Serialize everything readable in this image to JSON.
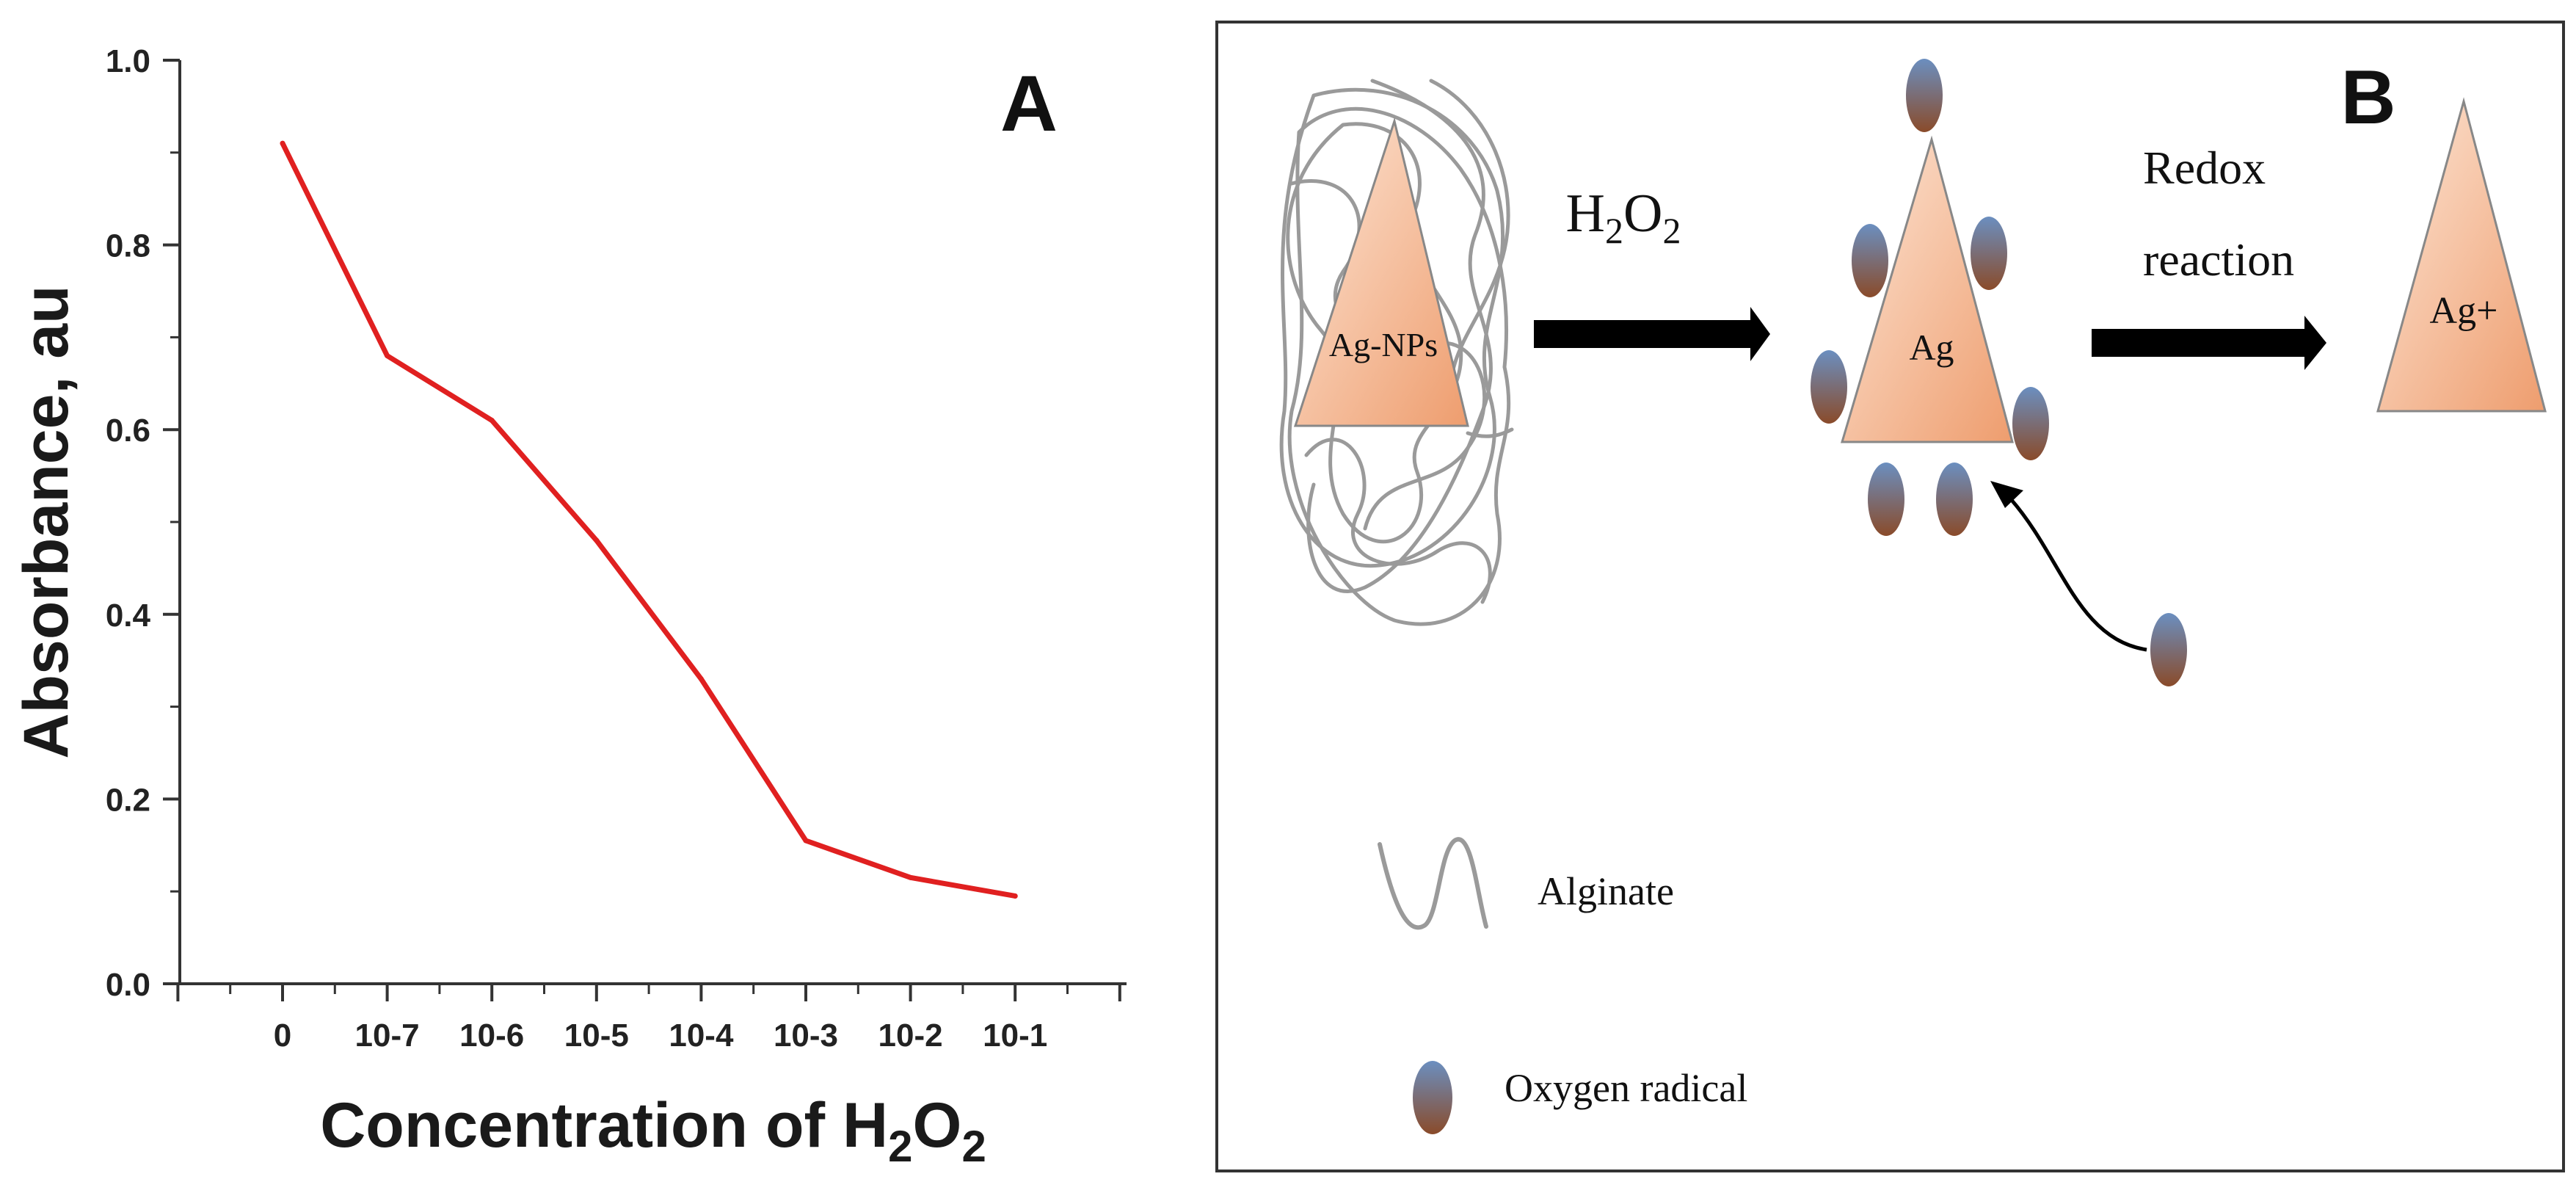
{
  "colors": {
    "line": "#e02020",
    "axis": "#333333",
    "tri_light": "#fde6d6",
    "tri_dark": "#ee9d6e",
    "radical_top": "#6b8fc0",
    "radical_bottom": "#8a4b2a",
    "alginate": "#9a9a9a",
    "arrow": "#000000",
    "frame": "#333333"
  },
  "chart_data": {
    "type": "line",
    "panel_label": "A",
    "xlabel_main": "Concentration of H",
    "xlabel_sub1": "2",
    "xlabel_mid": "O",
    "xlabel_sub2": "2",
    "ylabel": "Absorbance, au",
    "categories": [
      "0",
      "10-7",
      "10-6",
      "10-5",
      "10-4",
      "10-3",
      "10-2",
      "10-1"
    ],
    "ylim": [
      0.0,
      1.0
    ],
    "yticks": [
      "0.0",
      "0.2",
      "0.4",
      "0.6",
      "0.8",
      "1.0"
    ],
    "series": [
      {
        "values": [
          0.91,
          0.68,
          0.61,
          0.48,
          0.33,
          0.155,
          0.115,
          0.095
        ]
      }
    ],
    "grid": false
  },
  "diagram": {
    "panel_label": "B",
    "agnps_label": "Ag-NPs",
    "h2o2_H": "H",
    "h2o2_sub1": "2",
    "h2o2_O": "O",
    "h2o2_sub2": "2",
    "ag_label": "Ag",
    "redox_line1": "Redox",
    "redox_line2": "reaction",
    "agplus_label": "Ag+",
    "legend": {
      "alginate": "Alginate",
      "oxygen_radical": "Oxygen radical"
    }
  }
}
